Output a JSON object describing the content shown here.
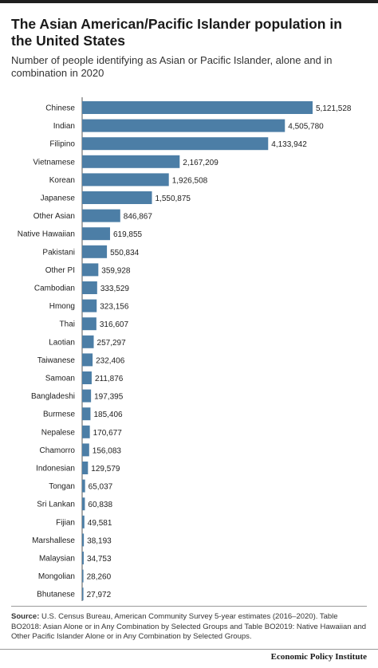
{
  "header": {
    "title": "The Asian American/Pacific Islander population in the United States",
    "subtitle": "Number of people identifying as Asian or Pacific Islander, alone and in combination in 2020"
  },
  "source": {
    "label": "Source:",
    "text": "U.S. Census Bureau, American Community Survey 5-year estimates (2016–2020). Table BO2018: Asian Alone or in Any Combination by Selected Groups and Table BO2019: Native Hawaiian and Other Pacific Islander Alone or in Any Combination by Selected Groups."
  },
  "brand": "Economic Policy Institute",
  "colors": {
    "bar": "#4c7ea6",
    "axis": "#555555",
    "text": "#222222"
  },
  "chart_data": {
    "type": "bar",
    "orientation": "horizontal",
    "title": "The Asian American/Pacific Islander population in the United States",
    "subtitle": "Number of people identifying as Asian or Pacific Islander, alone and in combination in 2020",
    "xlabel": "",
    "ylabel": "",
    "grid": false,
    "categories": [
      "Chinese",
      "Indian",
      "Filipino",
      "Vietnamese",
      "Korean",
      "Japanese",
      "Other Asian",
      "Native Hawaiian",
      "Pakistani",
      "Other PI",
      "Cambodian",
      "Hmong",
      "Thai",
      "Laotian",
      "Taiwanese",
      "Samoan",
      "Bangladeshi",
      "Burmese",
      "Nepalese",
      "Chamorro",
      "Indonesian",
      "Tongan",
      "Sri Lankan",
      "Fijian",
      "Marshallese",
      "Malaysian",
      "Mongolian",
      "Bhutanese"
    ],
    "values": [
      5121528,
      4505780,
      4133942,
      2167209,
      1926508,
      1550875,
      846867,
      619855,
      550834,
      359928,
      333529,
      323156,
      316607,
      257297,
      232406,
      211876,
      197395,
      185406,
      170677,
      156083,
      129579,
      65037,
      60838,
      49581,
      38193,
      34753,
      28260,
      27972
    ],
    "value_labels": [
      "5,121,528",
      "4,505,780",
      "4,133,942",
      "2,167,209",
      "1,926,508",
      "1,550,875",
      "846,867",
      "619,855",
      "550,834",
      "359,928",
      "333,529",
      "323,156",
      "316,607",
      "257,297",
      "232,406",
      "211,876",
      "197,395",
      "185,406",
      "170,677",
      "156,083",
      "129,579",
      "65,037",
      "60,838",
      "49,581",
      "38,193",
      "34,753",
      "28,260",
      "27,972"
    ]
  }
}
